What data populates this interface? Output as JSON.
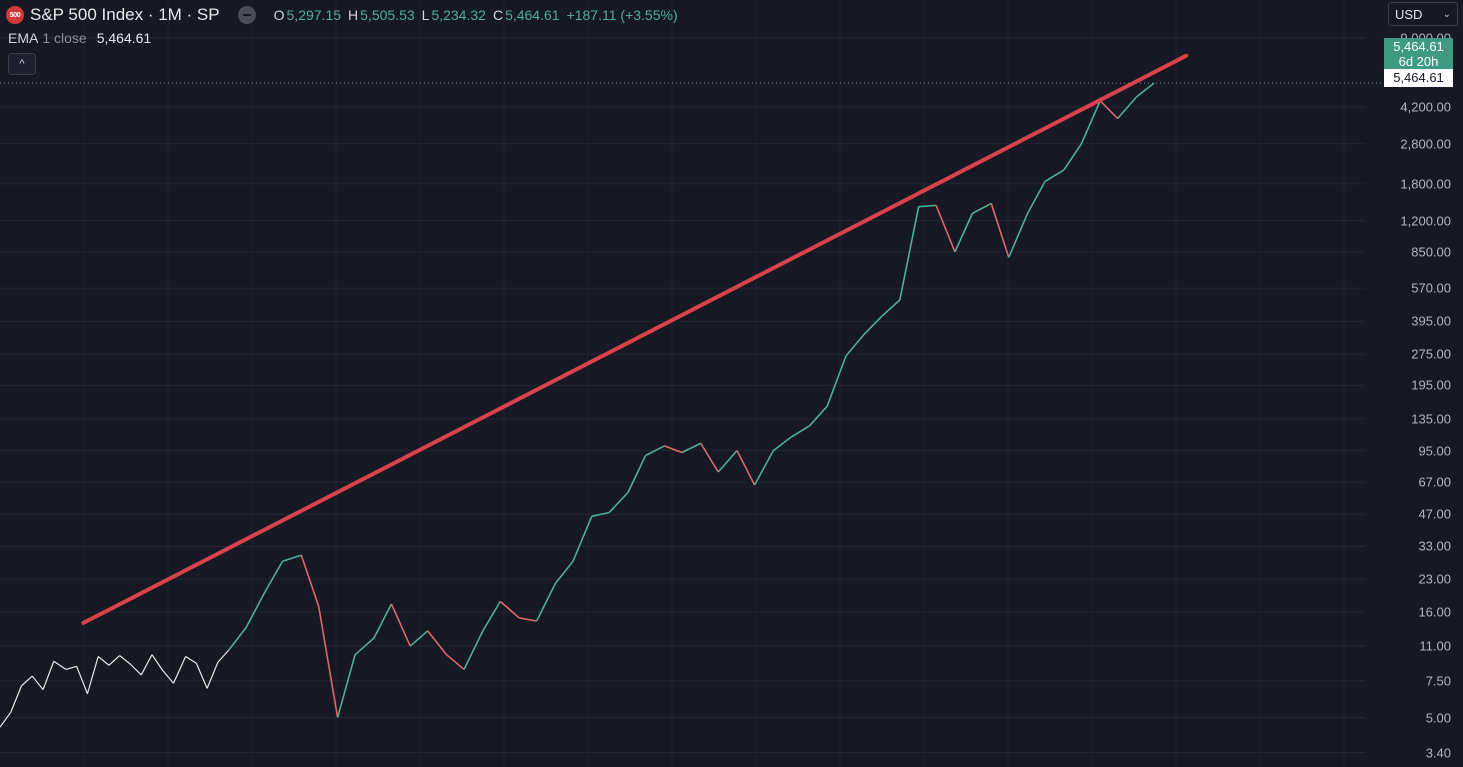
{
  "header": {
    "logo_text": "500",
    "title": "S&P 500 Index · 1M · SP",
    "ohlc": [
      {
        "label": "O",
        "value": "5,297.15"
      },
      {
        "label": "H",
        "value": "5,505.53"
      },
      {
        "label": "L",
        "value": "5,234.32"
      },
      {
        "label": "C",
        "value": "5,464.61"
      }
    ],
    "change": "+187.11 (+3.55%)"
  },
  "indicator": {
    "name": "EMA",
    "params": "1 close",
    "value": "5,464.61"
  },
  "currency": {
    "selected": "USD"
  },
  "price_scale": {
    "labels": [
      "9,000.00",
      "4,200.00",
      "2,800.00",
      "1,800.00",
      "1,200.00",
      "850.00",
      "570.00",
      "395.00",
      "275.00",
      "195.00",
      "135.00",
      "95.00",
      "67.00",
      "47.00",
      "33.00",
      "23.00",
      "16.00",
      "11.00",
      "7.50",
      "5.00",
      "3.40"
    ],
    "last_price": "5,464.61",
    "countdown": "6d 20h",
    "close_label": "5,464.61"
  },
  "colors": {
    "up": "#4fae96",
    "down": "#e06666",
    "trendline": "#d8424a",
    "background": "#161823",
    "history_line": "#e8e8e8"
  },
  "chart_data": {
    "type": "line",
    "y_scale": "log",
    "ylim": [
      3.2,
      9400
    ],
    "x_range": [
      0,
      1
    ],
    "history_series": {
      "x": [
        0,
        0.008,
        0.016,
        0.024,
        0.032,
        0.04,
        0.049,
        0.057,
        0.065,
        0.073,
        0.081,
        0.089,
        0.097,
        0.105,
        0.113,
        0.121,
        0.129,
        0.138,
        0.146,
        0.154,
        0.162,
        0.17
      ],
      "y": [
        4.5,
        5.3,
        7.1,
        7.9,
        6.8,
        9.3,
        8.5,
        8.8,
        6.5,
        9.8,
        8.9,
        9.9,
        9.0,
        8.0,
        10.0,
        8.4,
        7.3,
        9.8,
        9.1,
        6.9,
        9.2,
        10.5
      ]
    },
    "candle_series": {
      "x": [
        0.17,
        0.183,
        0.197,
        0.21,
        0.224,
        0.237,
        0.251,
        0.264,
        0.278,
        0.291,
        0.305,
        0.318,
        0.332,
        0.345,
        0.359,
        0.372,
        0.386,
        0.399,
        0.413,
        0.426,
        0.44,
        0.453,
        0.467,
        0.48,
        0.494,
        0.507,
        0.521,
        0.534,
        0.548,
        0.561,
        0.575,
        0.588,
        0.602,
        0.615,
        0.629,
        0.642,
        0.656,
        0.669,
        0.683,
        0.696,
        0.71,
        0.723,
        0.737,
        0.75,
        0.764,
        0.777,
        0.791,
        0.804,
        0.818,
        0.831,
        0.845,
        0.858
      ],
      "y": [
        10.5,
        13.5,
        20.0,
        28.0,
        30.0,
        17.0,
        5.0,
        10.0,
        12.0,
        17.5,
        11.0,
        13.0,
        10.0,
        8.5,
        13.0,
        18.0,
        15.0,
        14.5,
        22.0,
        28.0,
        46.0,
        48.0,
        60.0,
        90.0,
        100.0,
        93.0,
        103.0,
        75.0,
        95.0,
        65.0,
        95.0,
        110.0,
        125.0,
        155.0,
        270.0,
        340.0,
        420.0,
        500.0,
        1400.0,
        1420.0,
        850.0,
        1300.0,
        1450.0,
        800.0,
        1300.0,
        1850.0,
        2100.0,
        2800.0,
        4500.0,
        3700.0,
        4700.0,
        5464.61
      ]
    },
    "trendline": {
      "x": [
        0.062,
        0.882
      ],
      "y": [
        14.2,
        7400
      ]
    }
  }
}
